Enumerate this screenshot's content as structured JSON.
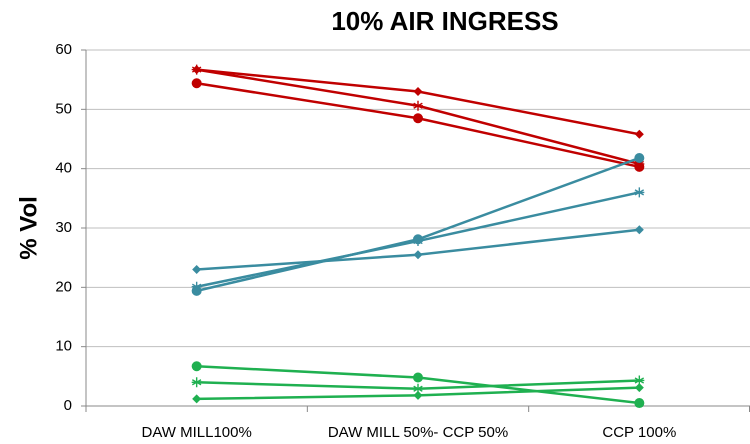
{
  "chart_data": {
    "type": "line",
    "title": "10% AIR INGRESS",
    "y_label": "% Vol",
    "categories": [
      "DAW MILL100%",
      "DAW MILL 50%- CCP 50%",
      "CCP 100%"
    ],
    "series": [
      {
        "color": "#c00000",
        "marker": "diamond",
        "values": [
          56.7,
          53,
          45.8
        ]
      },
      {
        "color": "#c00000",
        "marker": "star",
        "values": [
          56.7,
          50.6,
          40.8
        ]
      },
      {
        "color": "#c00000",
        "marker": "circle",
        "values": [
          54.4,
          48.5,
          40.3
        ]
      },
      {
        "color": "#3a8ca0",
        "marker": "diamond",
        "values": [
          23,
          25.5,
          29.7
        ]
      },
      {
        "color": "#3a8ca0",
        "marker": "star",
        "values": [
          20.1,
          27.8,
          36
        ]
      },
      {
        "color": "#3a8ca0",
        "marker": "circle",
        "values": [
          19.4,
          28.1,
          41.8
        ]
      },
      {
        "color": "#1fb050",
        "marker": "diamond",
        "values": [
          1.2,
          1.8,
          3.1
        ]
      },
      {
        "color": "#1fb050",
        "marker": "star",
        "values": [
          4,
          2.9,
          4.3
        ]
      },
      {
        "color": "#1fb050",
        "marker": "circle",
        "values": [
          6.7,
          4.8,
          0.5
        ]
      }
    ],
    "ylim": [
      0,
      60
    ],
    "yticks": [
      0,
      10,
      20,
      30,
      40,
      50,
      60
    ],
    "grid": true
  }
}
